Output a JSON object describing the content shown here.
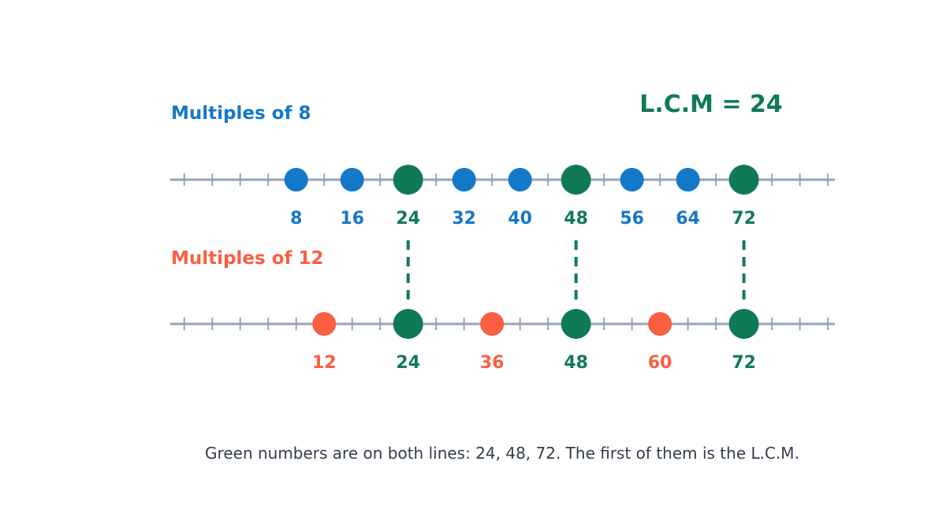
{
  "colors": {
    "line_a": "#1478c8",
    "line_b": "#fa5f41",
    "common": "#107a58",
    "axis": "#97a3b6",
    "caption": "#333d4d"
  },
  "lcm_label": "L.C.M = 24",
  "caption": "Green numbers are on both lines: 24, 48, 72. The first of them is the L.C.M.",
  "chart_data": {
    "type": "number-line",
    "common": [
      24,
      48,
      72
    ],
    "lines": [
      {
        "label": "Multiples of 8",
        "step": 8,
        "values": [
          8,
          16,
          24,
          32,
          40,
          48,
          56,
          64,
          72
        ],
        "labels": [
          "8",
          "16",
          "24",
          "32",
          "40",
          "48",
          "56",
          "64",
          "72"
        ]
      },
      {
        "label": "Multiples of 12",
        "step": 12,
        "values": [
          12,
          24,
          36,
          48,
          60,
          72
        ],
        "labels": [
          "12",
          "24",
          "36",
          "48",
          "60",
          "72"
        ]
      }
    ],
    "axis_range": [
      -10,
      85
    ],
    "tick_step": 4
  }
}
